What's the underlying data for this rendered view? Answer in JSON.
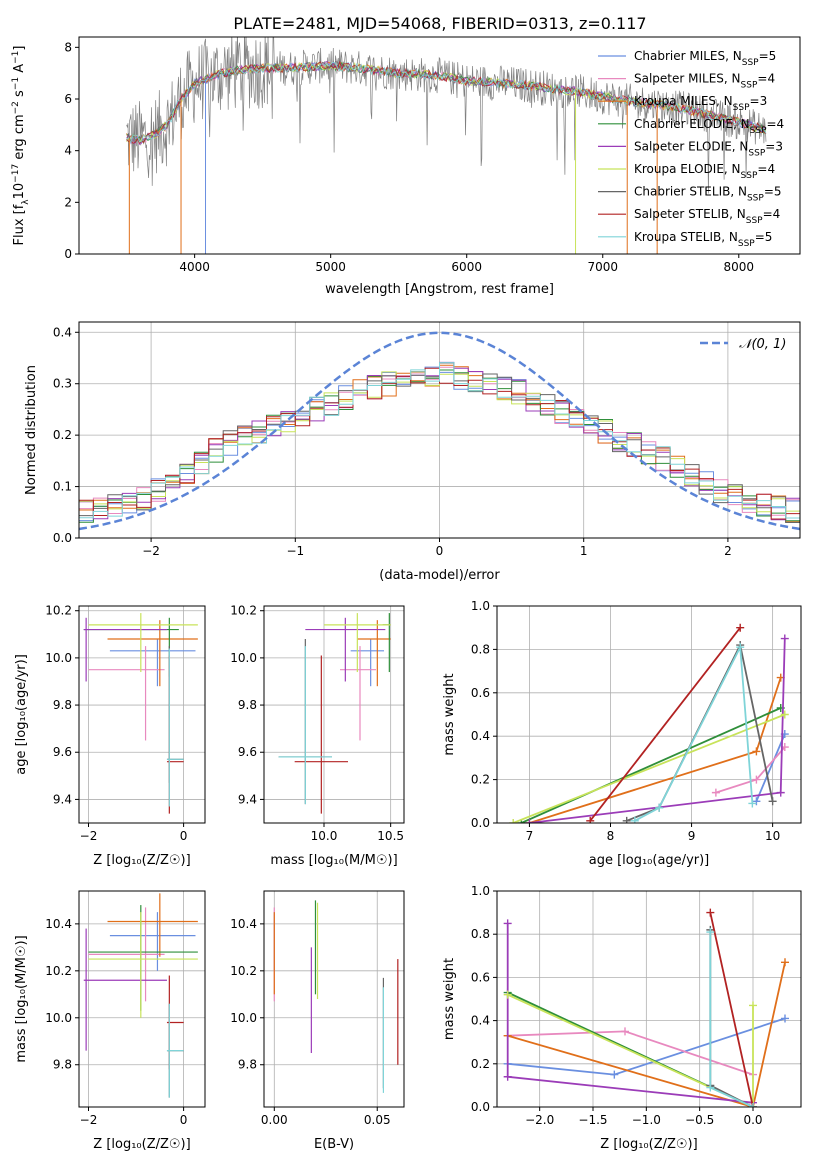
{
  "figure_title": "PLATE=2481, MJD=54068, FIBERID=0313, z=0.117",
  "colors": {
    "grid": "#b0b0b0",
    "normal_curve": "#5b84d6",
    "models": [
      "#6a8fe0",
      "#e889bf",
      "#e06f1a",
      "#2f8f3a",
      "#9b3cb8",
      "#c8e35a",
      "#666666",
      "#b22222",
      "#7fd4d8"
    ]
  },
  "legend_labels": [
    [
      "Chabrier MILES, N",
      "SSP",
      "=5"
    ],
    [
      "Salpeter MILES, N",
      "SSP",
      "=4"
    ],
    [
      "Kroupa MILES, N",
      "SSP",
      "=3"
    ],
    [
      "Chabrier ELODIE, N",
      "SSP",
      "=4"
    ],
    [
      "Salpeter ELODIE, N",
      "SSP",
      "=3"
    ],
    [
      "Kroupa ELODIE, N",
      "SSP",
      "=4"
    ],
    [
      "Chabrier STELIB, N",
      "SSP",
      "=5"
    ],
    [
      "Salpeter STELIB, N",
      "SSP",
      "=4"
    ],
    [
      "Kroupa STELIB, N",
      "SSP",
      "=5"
    ]
  ],
  "chart_data": [
    {
      "type": "line",
      "xlabel": "wavelength [Angstrom, rest frame]",
      "ylabel": "Flux [f_λ 10^-17 erg cm^-2 s^-1 A^-1]",
      "xlim": [
        3150,
        8450
      ],
      "ylim": [
        0,
        8.4
      ],
      "xticks": [
        4000,
        5000,
        6000,
        7000,
        8000
      ],
      "yticks": [
        0,
        2,
        4,
        6,
        8
      ],
      "data_range": [
        3500,
        8200
      ],
      "observed_profile": {
        "x": [
          3500,
          3600,
          3700,
          3800,
          3900,
          4000,
          4100,
          4200,
          4300,
          4500,
          4700,
          5000,
          5200,
          5500,
          5800,
          6000,
          6300,
          6500,
          6600,
          6800,
          7000,
          7200,
          7400,
          7700,
          8000,
          8200
        ],
        "y": [
          4.5,
          4.4,
          4.6,
          5.0,
          6.0,
          6.6,
          6.8,
          7.0,
          7.1,
          7.2,
          7.2,
          7.3,
          7.2,
          7.0,
          6.9,
          6.7,
          6.6,
          6.5,
          6.4,
          6.3,
          6.1,
          5.9,
          5.8,
          5.5,
          5.1,
          4.8
        ]
      }
    },
    {
      "type": "step",
      "xlabel": "(data-model)/error",
      "ylabel": "Normed distribution",
      "xlim": [
        -2.5,
        2.5
      ],
      "ylim": [
        0,
        0.42
      ],
      "xticks": [
        -2,
        -1,
        0,
        1,
        2
      ],
      "xticklabels": [
        "−2",
        "−1",
        "0",
        "1",
        "2"
      ],
      "yticks": [
        0.0,
        0.1,
        0.2,
        0.3,
        0.4
      ],
      "yticklabels": [
        "0.0",
        "0.1",
        "0.2",
        "0.3",
        "0.4"
      ],
      "legend_label": "𝒩(0, 1)",
      "histogram_envelope": {
        "x": [
          -2.5,
          -2.0,
          -1.5,
          -1.0,
          -0.5,
          0.0,
          0.5,
          1.0,
          1.5,
          2.0,
          2.5
        ],
        "y": [
          0.045,
          0.08,
          0.18,
          0.235,
          0.29,
          0.32,
          0.29,
          0.225,
          0.16,
          0.085,
          0.05
        ]
      }
    },
    {
      "type": "errorbar",
      "xlabel": "Z [log₁₀(Z/Z☉)]",
      "ylabel": "age  [log₁₀(age/yr)]",
      "xlim": [
        -2.2,
        0.45
      ],
      "ylim": [
        9.3,
        10.22
      ],
      "xticks": [
        -2,
        0
      ],
      "xticklabels": [
        "−2",
        "0"
      ],
      "yticks": [
        9.4,
        9.6,
        9.8,
        10.0,
        10.2
      ],
      "yticklabels": [
        "9.4",
        "9.6",
        "9.8",
        "10.0",
        "10.2"
      ],
      "points": [
        {
          "x": -0.55,
          "xerr": [
            1.0,
            0.8
          ],
          "y": 10.03,
          "yerr": [
            0.15,
            0.05
          ]
        },
        {
          "x": -0.8,
          "xerr": [
            1.2,
            0.4
          ],
          "y": 9.95,
          "yerr": [
            0.3,
            0.1
          ]
        },
        {
          "x": -0.5,
          "xerr": [
            1.1,
            0.8
          ],
          "y": 10.08,
          "yerr": [
            0.2,
            0.08
          ]
        },
        {
          "x": -0.3,
          "xerr": [
            1.8,
            0.2
          ],
          "y": 10.12,
          "yerr": [
            0.2,
            0.05
          ]
        },
        {
          "x": -2.05,
          "xerr": [
            0.05,
            1.7
          ],
          "y": 10.12,
          "yerr": [
            0.22,
            0.05
          ]
        },
        {
          "x": -0.9,
          "xerr": [
            1.1,
            1.2
          ],
          "y": 10.14,
          "yerr": [
            0.2,
            0.05
          ]
        },
        {
          "x": -0.3,
          "xerr": [
            0.05,
            0.3
          ],
          "y": 9.57,
          "yerr": [
            0.1,
            0.48
          ]
        },
        {
          "x": -0.3,
          "xerr": [
            0.05,
            0.3
          ],
          "y": 9.56,
          "yerr": [
            0.22,
            0.45
          ]
        },
        {
          "x": -0.3,
          "xerr": [
            0.05,
            0.3
          ],
          "y": 9.57,
          "yerr": [
            0.2,
            0.47
          ]
        }
      ]
    },
    {
      "type": "errorbar",
      "xlabel": "mass [log₁₀(M/M☉)]",
      "ylabel": "",
      "xlim": [
        9.55,
        10.6
      ],
      "ylim": [
        9.3,
        10.22
      ],
      "xticks": [
        10.0,
        10.5
      ],
      "xticklabels": [
        "10.0",
        "10.5"
      ],
      "yticks": [
        9.4,
        9.6,
        9.8,
        10.0,
        10.2
      ],
      "yticklabels": [
        "9.4",
        "9.6",
        "9.8",
        "10.0",
        "10.2"
      ],
      "points": [
        {
          "x": 10.35,
          "xerr": [
            0.15,
            0.1
          ],
          "y": 10.03,
          "yerr": [
            0.15,
            0.05
          ]
        },
        {
          "x": 10.27,
          "xerr": [
            0.15,
            0.12
          ],
          "y": 9.95,
          "yerr": [
            0.3,
            0.1
          ]
        },
        {
          "x": 10.4,
          "xerr": [
            0.15,
            0.1
          ],
          "y": 10.08,
          "yerr": [
            0.2,
            0.08
          ]
        },
        {
          "x": 10.49,
          "xerr": [
            0.05,
            0.0
          ],
          "y": 10.14,
          "yerr": [
            0.2,
            0.05
          ]
        },
        {
          "x": 10.16,
          "xerr": [
            0.3,
            0.3
          ],
          "y": 10.12,
          "yerr": [
            0.22,
            0.05
          ]
        },
        {
          "x": 10.25,
          "xerr": [
            0.25,
            0.25
          ],
          "y": 10.14,
          "yerr": [
            0.2,
            0.05
          ]
        },
        {
          "x": 9.86,
          "xerr": [
            0.2,
            0.2
          ],
          "y": 9.58,
          "yerr": [
            0.2,
            0.5
          ]
        },
        {
          "x": 9.98,
          "xerr": [
            0.2,
            0.2
          ],
          "y": 9.56,
          "yerr": [
            0.22,
            0.45
          ]
        },
        {
          "x": 9.86,
          "xerr": [
            0.2,
            0.2
          ],
          "y": 9.58,
          "yerr": [
            0.2,
            0.47
          ]
        }
      ]
    },
    {
      "type": "line",
      "xlabel": "age  [log₁₀(age/yr)]",
      "ylabel": "mass weight",
      "xlim": [
        6.6,
        10.35
      ],
      "ylim": [
        0.0,
        1.0
      ],
      "xticks": [
        7,
        8,
        9,
        10
      ],
      "yticks": [
        0.0,
        0.2,
        0.4,
        0.6,
        0.8,
        1.0
      ],
      "yticklabels": [
        "0.0",
        "0.2",
        "0.4",
        "0.6",
        "0.8",
        "1.0"
      ],
      "series": [
        {
          "x": [
            9.8,
            10.15
          ],
          "y": [
            0.1,
            0.41
          ]
        },
        {
          "x": [
            9.3,
            9.8,
            10.15
          ],
          "y": [
            0.14,
            0.2,
            0.35
          ]
        },
        {
          "x": [
            7.0,
            9.8,
            10.1
          ],
          "y": [
            0.0,
            0.33,
            0.67
          ]
        },
        {
          "x": [
            6.9,
            10.1
          ],
          "y": [
            0.0,
            0.53
          ]
        },
        {
          "x": [
            7.0,
            10.1,
            10.15
          ],
          "y": [
            0.0,
            0.14,
            0.85
          ]
        },
        {
          "x": [
            6.8,
            10.15
          ],
          "y": [
            0.0,
            0.5
          ]
        },
        {
          "x": [
            8.2,
            8.6,
            9.6,
            10.0
          ],
          "y": [
            0.01,
            0.07,
            0.82,
            0.1
          ]
        },
        {
          "x": [
            7.75,
            9.6
          ],
          "y": [
            0.01,
            0.9
          ]
        },
        {
          "x": [
            8.3,
            8.6,
            9.6,
            9.75
          ],
          "y": [
            0.01,
            0.07,
            0.81,
            0.09
          ]
        }
      ]
    },
    {
      "type": "errorbar",
      "xlabel": "Z [log₁₀(Z/Z☉)]",
      "ylabel": "mass [log₁₀(M/M☉)]",
      "xlim": [
        -2.2,
        0.45
      ],
      "ylim": [
        9.62,
        10.54
      ],
      "xticks": [
        -2,
        0
      ],
      "xticklabels": [
        "−2",
        "0"
      ],
      "yticks": [
        9.8,
        10.0,
        10.2,
        10.4
      ],
      "yticklabels": [
        "9.8",
        "10.0",
        "10.2",
        "10.4"
      ],
      "points": [
        {
          "x": -0.55,
          "xerr": [
            1.0,
            0.8
          ],
          "y": 10.35,
          "yerr": [
            0.15,
            0.1
          ]
        },
        {
          "x": -0.8,
          "xerr": [
            1.2,
            0.4
          ],
          "y": 10.27,
          "yerr": [
            0.2,
            0.2
          ]
        },
        {
          "x": -0.5,
          "xerr": [
            1.1,
            0.8
          ],
          "y": 10.41,
          "yerr": [
            0.15,
            0.12
          ]
        },
        {
          "x": -0.9,
          "xerr": [
            1.1,
            1.2
          ],
          "y": 10.28,
          "yerr": [
            0.25,
            0.2
          ]
        },
        {
          "x": -2.05,
          "xerr": [
            0.05,
            1.7
          ],
          "y": 10.16,
          "yerr": [
            0.3,
            0.22
          ]
        },
        {
          "x": -0.9,
          "xerr": [
            1.1,
            1.2
          ],
          "y": 10.25,
          "yerr": [
            0.25,
            0.2
          ]
        },
        {
          "x": -0.3,
          "xerr": [
            0.05,
            0.3
          ],
          "y": 9.86,
          "yerr": [
            0.2,
            0.2
          ]
        },
        {
          "x": -0.3,
          "xerr": [
            0.05,
            0.3
          ],
          "y": 9.98,
          "yerr": [
            0.2,
            0.2
          ]
        },
        {
          "x": -0.3,
          "xerr": [
            0.05,
            0.3
          ],
          "y": 9.86,
          "yerr": [
            0.2,
            0.2
          ]
        }
      ]
    },
    {
      "type": "errorbar",
      "xlabel": "E(B-V)",
      "ylabel": "",
      "xlim": [
        -0.005,
        0.063
      ],
      "ylim": [
        9.62,
        10.54
      ],
      "xticks": [
        0.0,
        0.05
      ],
      "xticklabels": [
        "0.00",
        "0.05"
      ],
      "yticks": [
        9.8,
        10.0,
        10.2,
        10.4
      ],
      "yticklabels": [
        "9.8",
        "10.0",
        "10.2",
        "10.4"
      ],
      "points": [
        {
          "x": 0.0,
          "y": 10.35,
          "yerr": [
            0.15,
            0.1
          ]
        },
        {
          "x": 0.0,
          "y": 10.27,
          "yerr": [
            0.2,
            0.2
          ]
        },
        {
          "x": 0.0,
          "y": 10.3,
          "yerr": [
            0.2,
            0.15
          ]
        },
        {
          "x": 0.02,
          "y": 10.3,
          "yerr": [
            0.2,
            0.2
          ]
        },
        {
          "x": 0.018,
          "y": 10.1,
          "yerr": [
            0.25,
            0.2
          ]
        },
        {
          "x": 0.021,
          "y": 10.28,
          "yerr": [
            0.2,
            0.21
          ]
        },
        {
          "x": 0.053,
          "y": 9.9,
          "yerr": [
            0.2,
            0.27
          ]
        },
        {
          "x": 0.06,
          "y": 10.02,
          "yerr": [
            0.22,
            0.23
          ]
        },
        {
          "x": 0.053,
          "y": 9.88,
          "yerr": [
            0.2,
            0.25
          ]
        }
      ]
    },
    {
      "type": "line",
      "xlabel": "Z [log₁₀(Z/Z☉)]",
      "ylabel": "mass weight",
      "xlim": [
        -2.4,
        0.45
      ],
      "ylim": [
        0.0,
        1.0
      ],
      "xticks": [
        -2.0,
        -1.5,
        -1.0,
        -0.5,
        0.0
      ],
      "xticklabels": [
        "−2.0",
        "−1.5",
        "−1.0",
        "−0.5",
        "0.0"
      ],
      "yticks": [
        0.0,
        0.2,
        0.4,
        0.6,
        0.8,
        1.0
      ],
      "yticklabels": [
        "0.0",
        "0.2",
        "0.4",
        "0.6",
        "0.8",
        "1.0"
      ],
      "series": [
        {
          "x": [
            -2.3,
            -1.3,
            0.3
          ],
          "y": [
            0.2,
            0.15,
            0.41
          ]
        },
        {
          "x": [
            -2.3,
            -1.2,
            0.0
          ],
          "y": [
            0.33,
            0.35,
            0.15
          ]
        },
        {
          "x": [
            -2.3,
            0.0,
            0.3
          ],
          "y": [
            0.33,
            0.0,
            0.67
          ]
        },
        {
          "x": [
            -2.3,
            0.0
          ],
          "y": [
            0.53,
            0.0
          ]
        },
        {
          "x": [
            -2.3,
            -2.3,
            0.0
          ],
          "y": [
            0.85,
            0.14,
            0.02
          ]
        },
        {
          "x": [
            -2.3,
            0.0,
            0.0
          ],
          "y": [
            0.52,
            0.0,
            0.47
          ]
        },
        {
          "x": [
            -0.4,
            -0.4,
            0.0
          ],
          "y": [
            0.82,
            0.1,
            0.0
          ]
        },
        {
          "x": [
            -0.4,
            0.0
          ],
          "y": [
            0.9,
            0.0
          ]
        },
        {
          "x": [
            -0.4,
            -0.4,
            0.0
          ],
          "y": [
            0.81,
            0.09,
            0.0
          ]
        }
      ]
    }
  ]
}
